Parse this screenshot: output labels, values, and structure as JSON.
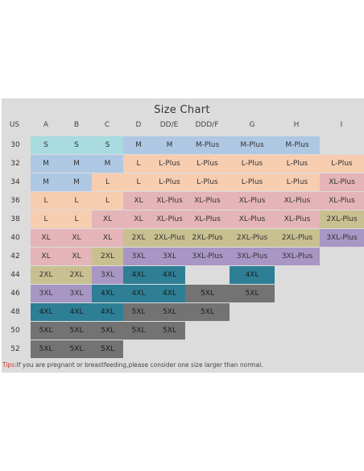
{
  "title": "Size Chart",
  "headers": [
    "US",
    "A",
    "B",
    "C",
    "D",
    "DD/E",
    "DDD/F",
    "G",
    "H",
    "I"
  ],
  "rows": [
    {
      "us": "30",
      "cells": [
        "S",
        "S",
        "S",
        "M",
        "M",
        "M-Plus",
        "M-Plus",
        "M-Plus",
        ""
      ]
    },
    {
      "us": "32",
      "cells": [
        "M",
        "M",
        "M",
        "L",
        "L-Plus",
        "L-Plus",
        "L-Plus",
        "L-Plus",
        "L-Plus"
      ]
    },
    {
      "us": "34",
      "cells": [
        "M",
        "M",
        "L",
        "L",
        "L-Plus",
        "L-Plus",
        "L-Plus",
        "L-Plus",
        "XL-Plus"
      ]
    },
    {
      "us": "36",
      "cells": [
        "L",
        "L",
        "L",
        "XL",
        "XL-Plus",
        "XL-Plus",
        "XL-Plus",
        "XL-Plus",
        "XL-Plus"
      ]
    },
    {
      "us": "38",
      "cells": [
        "L",
        "L",
        "XL",
        "XL",
        "XL-Plus",
        "XL-Plus",
        "XL-Plus",
        "XL-Plus",
        "2XL-Plus"
      ]
    },
    {
      "us": "40",
      "cells": [
        "XL",
        "XL",
        "XL",
        "2XL",
        "2XL-Plus",
        "2XL-Plus",
        "2XL-Plus",
        "2XL-Plus",
        "3XL-Plus"
      ]
    },
    {
      "us": "42",
      "cells": [
        "XL",
        "XL",
        "2XL",
        "3XL",
        "3XL",
        "3XL-Plus",
        "3XL-Plus",
        "3XL-Plus",
        ""
      ]
    },
    {
      "us": "44",
      "cells": [
        "2XL",
        "2XL",
        "3XL",
        "4XL",
        "4XL",
        "",
        "4XL",
        "",
        ""
      ]
    },
    {
      "us": "46",
      "cells": [
        "3XL",
        "3XL",
        "4XL",
        "4XL",
        "4XL",
        "5XL",
        "5XL",
        "",
        ""
      ]
    },
    {
      "us": "48",
      "cells": [
        "4XL",
        "4XL",
        "4XL",
        "5XL",
        "5XL",
        "5XL",
        "",
        "",
        ""
      ]
    },
    {
      "us": "50",
      "cells": [
        "5XL",
        "5XL",
        "5XL",
        "5XL",
        "5XL",
        "",
        "",
        "",
        ""
      ]
    },
    {
      "us": "52",
      "cells": [
        "5XL",
        "5XL",
        "5XL",
        "",
        "",
        "",
        "",
        "",
        ""
      ]
    }
  ],
  "size_colors": {
    "S": "#a8dce0",
    "M": "#aec8e4",
    "L": "#f7cdb0",
    "XL": "#e4b4b8",
    "2XL": "#c8c090",
    "3XL": "#a896c4",
    "4XL": "#2e7f95",
    "5XL": "#737373"
  },
  "tips": {
    "lead": "Tips:",
    "text": "If you are pregnant or breastfeeding,please consider one size larger than normal."
  }
}
